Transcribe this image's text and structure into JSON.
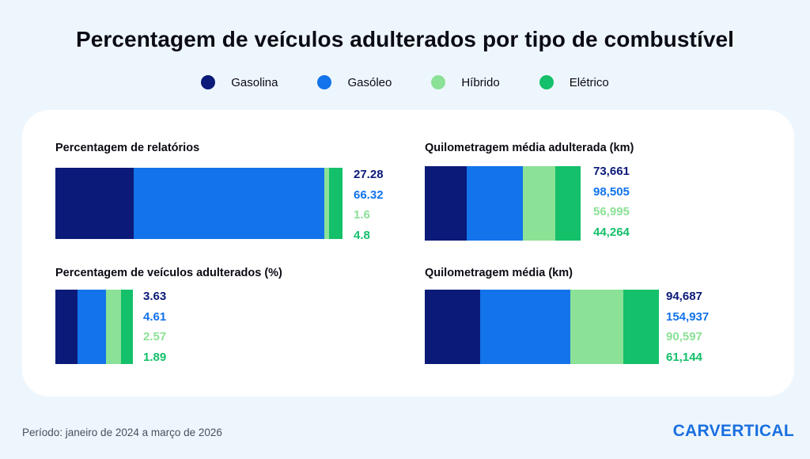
{
  "title": "Percentagem de veículos adulterados por tipo de combustível",
  "legend": [
    {
      "label": "Gasolina",
      "color": "#0b1a78"
    },
    {
      "label": "Gasóleo",
      "color": "#1273ea"
    },
    {
      "label": "Híbrido",
      "color": "#8be196"
    },
    {
      "label": "Elétrico",
      "color": "#14c06a"
    }
  ],
  "colors": {
    "gasolina": "#0b1a78",
    "gasoleo": "#1273ea",
    "hibrido": "#8be196",
    "eletrico": "#14c06a",
    "background": "#eef6fd",
    "card": "#ffffff"
  },
  "chart_data": [
    {
      "type": "bar",
      "title": "Percentagem de relatórios",
      "categories": [
        "Gasolina",
        "Gasóleo",
        "Híbrido",
        "Elétrico"
      ],
      "values": [
        27.28,
        66.32,
        1.6,
        4.8
      ],
      "labels": [
        "27.28",
        "66.32",
        "1.6",
        "4.8"
      ],
      "stacked": true
    },
    {
      "type": "bar",
      "title": "Quilometragem média adulterada (km)",
      "categories": [
        "Gasolina",
        "Gasóleo",
        "Híbrido",
        "Elétrico"
      ],
      "values": [
        73661,
        98505,
        56995,
        44264
      ],
      "labels": [
        "73,661",
        "98,505",
        "56,995",
        "44,264"
      ],
      "stacked": true
    },
    {
      "type": "bar",
      "title": "Percentagem de veículos adulterados (%)",
      "categories": [
        "Gasolina",
        "Gasóleo",
        "Híbrido",
        "Elétrico"
      ],
      "values": [
        3.63,
        4.61,
        2.57,
        1.89
      ],
      "labels": [
        "3.63",
        "4.61",
        "2.57",
        "1.89"
      ],
      "stacked": true
    },
    {
      "type": "bar",
      "title": "Quilometragem média (km)",
      "categories": [
        "Gasolina",
        "Gasóleo",
        "Híbrido",
        "Elétrico"
      ],
      "values": [
        94687,
        154937,
        90597,
        61144
      ],
      "labels": [
        "94,687",
        "154,937",
        "90,597",
        "61,144"
      ],
      "stacked": true
    }
  ],
  "footer": {
    "period": "Período: janeiro de 2024 a março de 2026",
    "logo": "CARVERTICAL"
  }
}
